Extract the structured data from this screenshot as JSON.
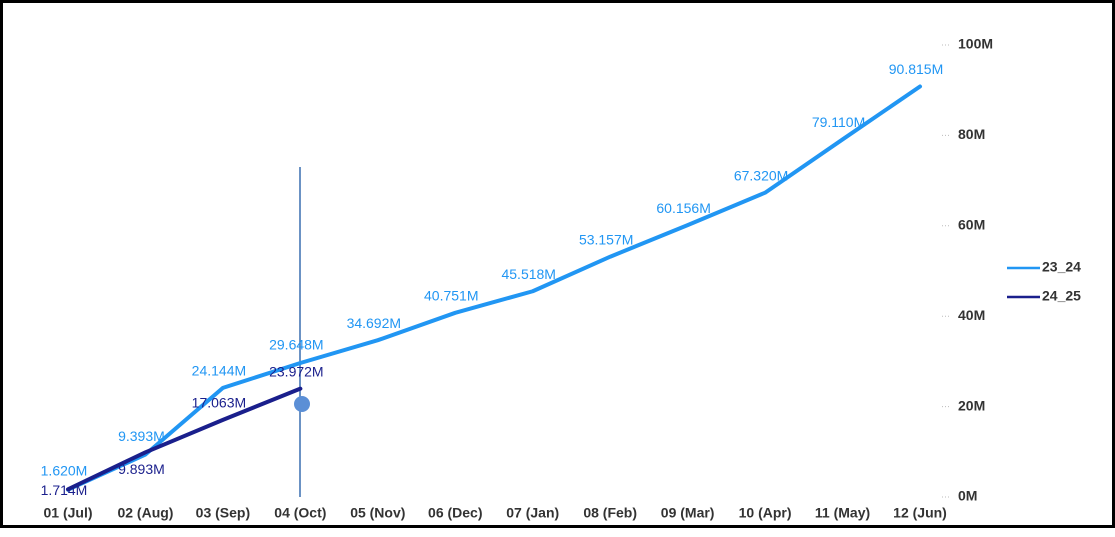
{
  "chart_data": {
    "type": "line",
    "categories": [
      "01 (Jul)",
      "02 (Aug)",
      "03 (Sep)",
      "04 (Oct)",
      "05 (Nov)",
      "06 (Dec)",
      "07 (Jan)",
      "08 (Feb)",
      "09 (Mar)",
      "10 (Apr)",
      "11 (May)",
      "12 (Jun)"
    ],
    "series": [
      {
        "name": "23_24",
        "color": "#2196f3",
        "values": [
          1.62,
          9.393,
          24.144,
          29.648,
          34.692,
          40.751,
          45.518,
          53.157,
          60.156,
          67.32,
          79.11,
          90.815
        ],
        "value_labels": [
          "1.620M",
          "9.393M",
          "24.144M",
          "29.648M",
          "34.692M",
          "40.751M",
          "45.518M",
          "53.157M",
          "60.156M",
          "67.320M",
          "79.110M",
          "90.815M"
        ]
      },
      {
        "name": "24_25",
        "color": "#1a1f8c",
        "values": [
          1.714,
          9.893,
          17.063,
          23.972,
          null,
          null,
          null,
          null,
          null,
          null,
          null,
          null
        ],
        "value_labels": [
          "1.714M",
          "9.893M",
          "17.063M",
          "23.972M",
          null,
          null,
          null,
          null,
          null,
          null,
          null,
          null
        ]
      }
    ],
    "ylim": [
      0,
      100
    ],
    "yticks": [
      {
        "value": 0,
        "label": "0M"
      },
      {
        "value": 20,
        "label": "20M"
      },
      {
        "value": 40,
        "label": "40M"
      },
      {
        "value": 60,
        "label": "60M"
      },
      {
        "value": 80,
        "label": "80M"
      },
      {
        "value": 100,
        "label": "100M"
      }
    ],
    "y_axis_side": "right",
    "legend": "right"
  }
}
